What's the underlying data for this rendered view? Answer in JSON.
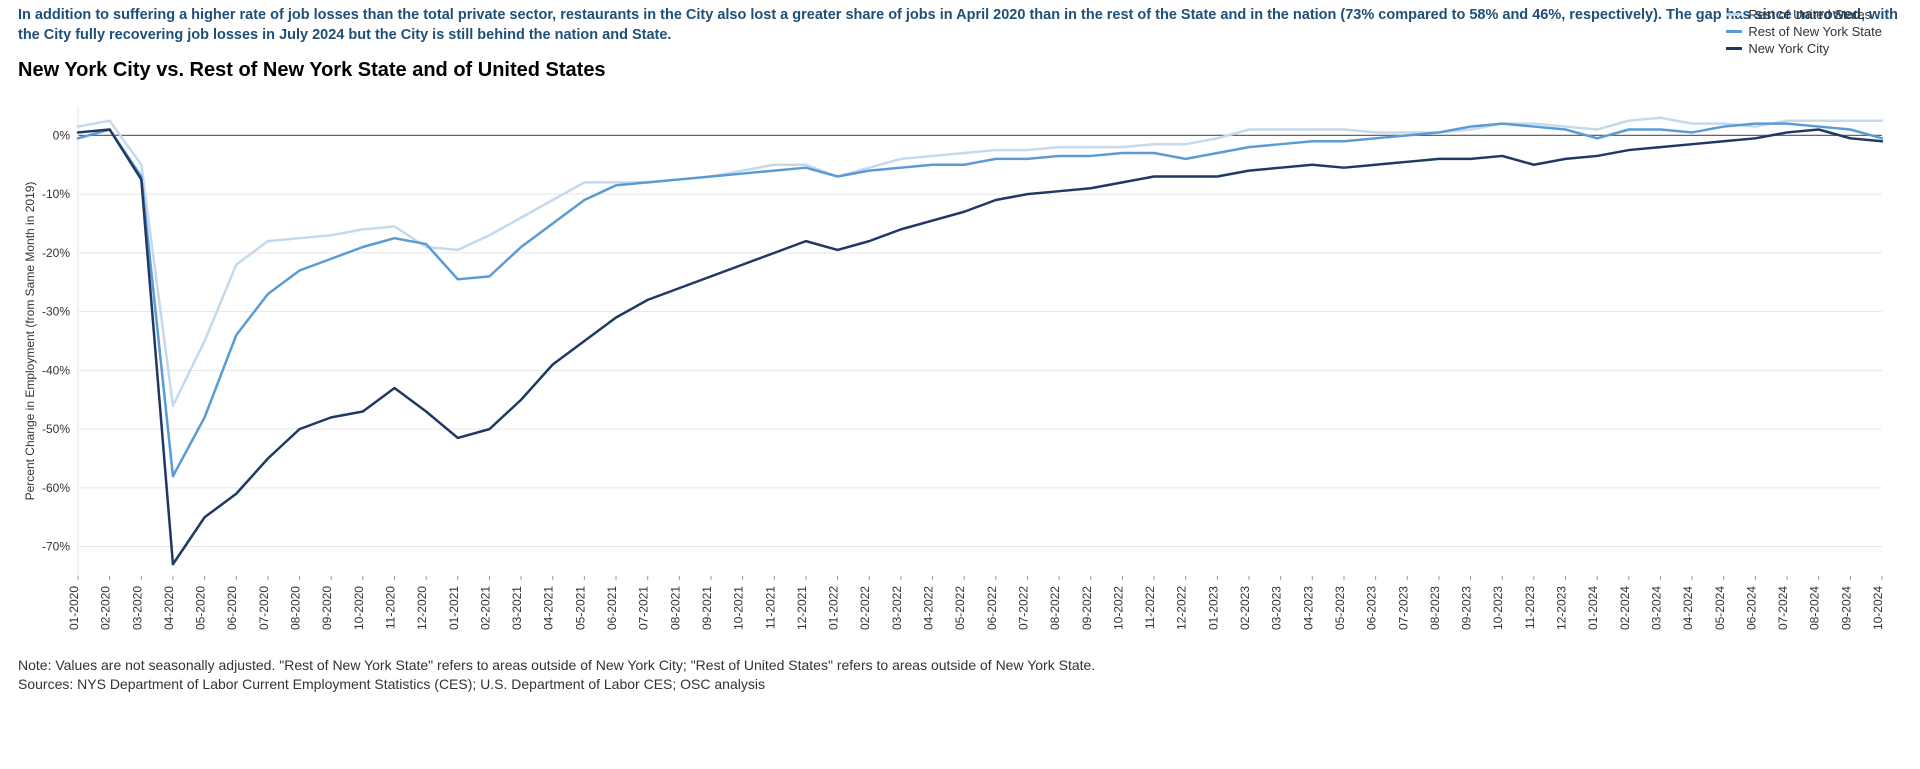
{
  "intro_text": "In addition to suffering a higher rate of job losses than the total private sector, restaurants in the City also lost a greater share of jobs in April 2020 than in the rest of the State and in the nation (73% compared to 58% and 46%, respectively). The gap has since narrowed, with the City fully recovering job losses in July 2024 but the City is still behind the nation and State.",
  "title": "New York City vs. Rest of New York State and of United States",
  "y_axis_label": "Percent Change in Employment (from Same Month in 2019)",
  "note_line1": "Note: Values are not seasonally adjusted. \"Rest of New York State\" refers to areas outside of New York City; \"Rest of United States\" refers to areas outside of New York State.",
  "note_line2": "Sources: NYS Department of Labor Current Employment Statistics (CES); U.S. Department of Labor CES; OSC analysis",
  "chart": {
    "type": "line",
    "background_color": "#ffffff",
    "grid_color": "#e6e6e6",
    "zero_line_color": "#666666",
    "axis_line_color": "#999999",
    "label_color": "#333333",
    "title_fontsize": 20,
    "label_fontsize": 12,
    "tick_fontsize": 12,
    "line_width": 2.5,
    "ylim": [
      -75,
      5
    ],
    "ytick_step": 10,
    "yticks": [
      0,
      -10,
      -20,
      -30,
      -40,
      -50,
      -60,
      -70
    ],
    "categories": [
      "01-2020",
      "02-2020",
      "03-2020",
      "04-2020",
      "05-2020",
      "06-2020",
      "07-2020",
      "08-2020",
      "09-2020",
      "10-2020",
      "11-2020",
      "12-2020",
      "01-2021",
      "02-2021",
      "03-2021",
      "04-2021",
      "05-2021",
      "06-2021",
      "07-2021",
      "08-2021",
      "09-2021",
      "10-2021",
      "11-2021",
      "12-2021",
      "01-2022",
      "02-2022",
      "03-2022",
      "04-2022",
      "05-2022",
      "06-2022",
      "07-2022",
      "08-2022",
      "09-2022",
      "10-2022",
      "11-2022",
      "12-2022",
      "01-2023",
      "02-2023",
      "03-2023",
      "04-2023",
      "05-2023",
      "06-2023",
      "07-2023",
      "08-2023",
      "09-2023",
      "10-2023",
      "11-2023",
      "12-2023",
      "01-2024",
      "02-2024",
      "03-2024",
      "04-2024",
      "05-2024",
      "06-2024",
      "07-2024",
      "08-2024",
      "09-2024",
      "10-2024"
    ],
    "legend": {
      "position": "top-right",
      "items": [
        {
          "label": "Rest of United States",
          "color": "#c5d9ed"
        },
        {
          "label": "Rest of New York State",
          "color": "#5b9bd5"
        },
        {
          "label": "New York City",
          "color": "#1f3864"
        }
      ]
    },
    "series": [
      {
        "name": "Rest of United States",
        "color": "#c5d9ed",
        "values": [
          1.5,
          2.5,
          -5.0,
          -46.0,
          -35.0,
          -22.0,
          -18.0,
          -17.5,
          -17.0,
          -16.0,
          -15.5,
          -19.0,
          -19.5,
          -17.0,
          -14.0,
          -11.0,
          -8.0,
          -8.0,
          -8.0,
          -7.5,
          -7.0,
          -6.0,
          -5.0,
          -5.0,
          -7.0,
          -5.5,
          -4.0,
          -3.5,
          -3.0,
          -2.5,
          -2.5,
          -2.0,
          -2.0,
          -2.0,
          -1.5,
          -1.5,
          -0.5,
          1.0,
          1.0,
          1.0,
          1.0,
          0.5,
          0.5,
          0.5,
          1.0,
          2.0,
          2.0,
          1.5,
          1.0,
          2.5,
          3.0,
          2.0,
          2.0,
          1.5,
          2.5,
          2.5,
          2.5,
          2.5
        ]
      },
      {
        "name": "Rest of New York State",
        "color": "#5b9bd5",
        "values": [
          -0.5,
          1.0,
          -7.0,
          -58.0,
          -48.0,
          -34.0,
          -27.0,
          -23.0,
          -21.0,
          -19.0,
          -17.5,
          -18.5,
          -24.5,
          -24.0,
          -19.0,
          -15.0,
          -11.0,
          -8.5,
          -8.0,
          -7.5,
          -7.0,
          -6.5,
          -6.0,
          -5.5,
          -7.0,
          -6.0,
          -5.5,
          -5.0,
          -5.0,
          -4.0,
          -4.0,
          -3.5,
          -3.5,
          -3.0,
          -3.0,
          -4.0,
          -3.0,
          -2.0,
          -1.5,
          -1.0,
          -1.0,
          -0.5,
          0.0,
          0.5,
          1.5,
          2.0,
          1.5,
          1.0,
          -0.5,
          1.0,
          1.0,
          0.5,
          1.5,
          2.0,
          2.0,
          1.5,
          1.0,
          -0.5
        ]
      },
      {
        "name": "New York City",
        "color": "#1f3864",
        "values": [
          0.5,
          1.0,
          -7.5,
          -73.0,
          -65.0,
          -61.0,
          -55.0,
          -50.0,
          -48.0,
          -47.0,
          -43.0,
          -47.0,
          -51.5,
          -50.0,
          -45.0,
          -39.0,
          -35.0,
          -31.0,
          -28.0,
          -26.0,
          -24.0,
          -22.0,
          -20.0,
          -18.0,
          -19.5,
          -18.0,
          -16.0,
          -14.5,
          -13.0,
          -11.0,
          -10.0,
          -9.5,
          -9.0,
          -8.0,
          -7.0,
          -7.0,
          -7.0,
          -6.0,
          -5.5,
          -5.0,
          -5.5,
          -5.0,
          -4.5,
          -4.0,
          -4.0,
          -3.5,
          -5.0,
          -4.0,
          -3.5,
          -2.5,
          -2.0,
          -1.5,
          -1.0,
          -0.5,
          0.5,
          1.0,
          -0.5,
          -1.0
        ]
      }
    ]
  }
}
